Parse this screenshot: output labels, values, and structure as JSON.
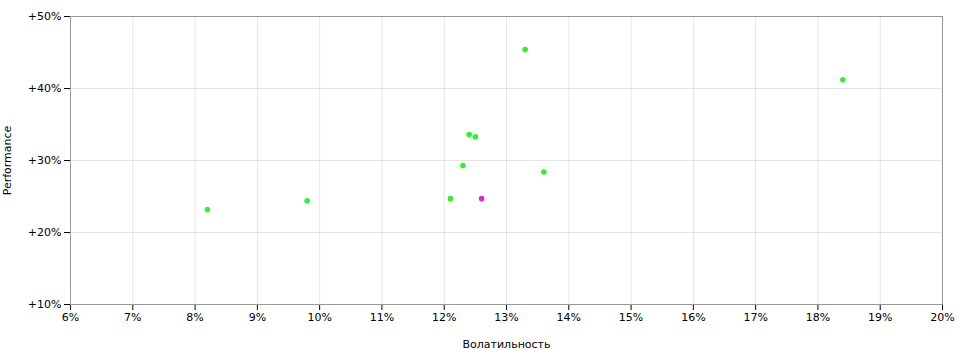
{
  "chart_data": {
    "type": "scatter",
    "xlabel": "Волатильность",
    "ylabel": "Performance",
    "xlim": [
      0.06,
      0.2
    ],
    "ylim": [
      0.1,
      0.5
    ],
    "xticks": [
      {
        "value": 0.06,
        "label": "6%"
      },
      {
        "value": 0.07,
        "label": "7%"
      },
      {
        "value": 0.08,
        "label": "8%"
      },
      {
        "value": 0.09,
        "label": "9%"
      },
      {
        "value": 0.1,
        "label": "10%"
      },
      {
        "value": 0.11,
        "label": "11%"
      },
      {
        "value": 0.12,
        "label": "12%"
      },
      {
        "value": 0.13,
        "label": "13%"
      },
      {
        "value": 0.14,
        "label": "14%"
      },
      {
        "value": 0.15,
        "label": "15%"
      },
      {
        "value": 0.16,
        "label": "16%"
      },
      {
        "value": 0.17,
        "label": "17%"
      },
      {
        "value": 0.18,
        "label": "18%"
      },
      {
        "value": 0.19,
        "label": "19%"
      },
      {
        "value": 0.2,
        "label": "20%"
      }
    ],
    "yticks": [
      {
        "value": 0.1,
        "label": "+10%"
      },
      {
        "value": 0.2,
        "label": "+20%"
      },
      {
        "value": 0.3,
        "label": "+30%"
      },
      {
        "value": 0.4,
        "label": "+40%"
      },
      {
        "value": 0.5,
        "label": "+50%"
      }
    ],
    "grid": true,
    "series": [
      {
        "color": "#33ee33",
        "x": [
          0.082,
          0.098,
          0.121,
          0.123,
          0.124,
          0.125,
          0.133,
          0.136,
          0.184
        ],
        "values": [
          0.232,
          0.244,
          0.247,
          0.293,
          0.336,
          0.333,
          0.454,
          0.284,
          0.412
        ]
      },
      {
        "color": "#cc33cc",
        "x": [
          0.126
        ],
        "values": [
          0.247
        ]
      }
    ]
  }
}
